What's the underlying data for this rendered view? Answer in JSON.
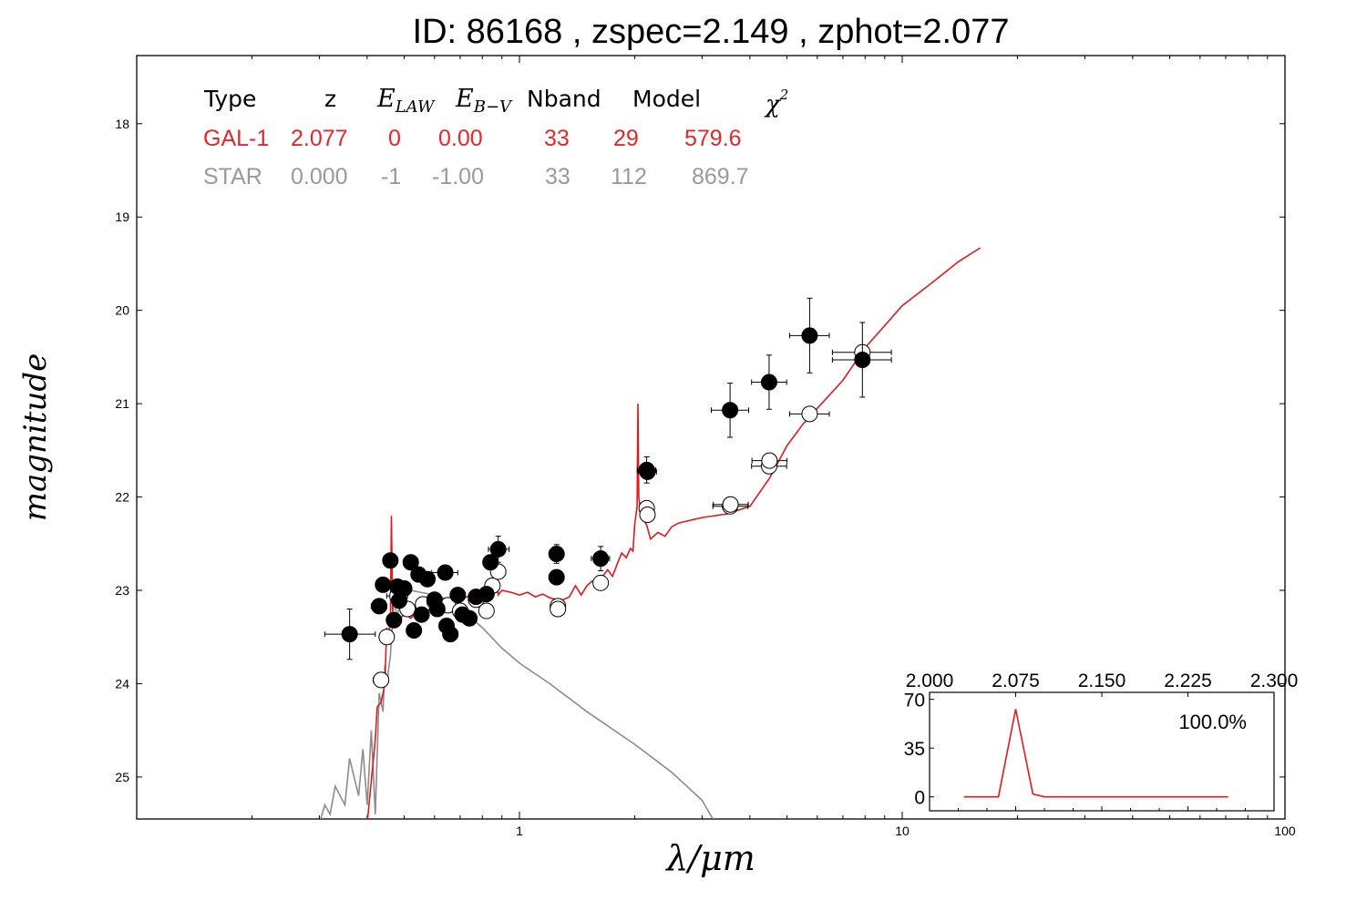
{
  "title": "ID:  86168 , zspec=2.149 , zphot=2.077",
  "colors": {
    "gal": "#e8262a",
    "star": "#999999",
    "model_star": "#8c8c8c",
    "model_gal": "#e0191f",
    "axis": "#000000"
  },
  "table": {
    "headers": [
      "Type",
      "z",
      "E",
      "LAW",
      "E",
      "B−V",
      "Nband",
      "Model",
      "χ",
      "2"
    ],
    "rows": [
      {
        "name": "gal",
        "cells": [
          "GAL-1",
          "2.077",
          "0",
          "0.00",
          "33",
          "29",
          "579.6"
        ]
      },
      {
        "name": "star",
        "cells": [
          "STAR",
          "0.000",
          "-1",
          "-1.00",
          "33",
          "112",
          "869.7"
        ]
      }
    ]
  },
  "chart_data": [
    {
      "type": "scatter",
      "title": "ID:  86168 , zspec=2.149 , zphot=2.077",
      "xlabel": "λ/μm",
      "ylabel": "magnitude",
      "xscale": "log",
      "xlim": [
        0.1,
        100
      ],
      "ylim": [
        25.45,
        17.27
      ],
      "x_ticks": [
        1,
        10,
        100
      ],
      "x_tick_labels": [
        "1",
        "10",
        "100"
      ],
      "y_ticks": [
        18,
        19,
        20,
        21,
        22,
        23,
        24,
        25
      ],
      "y_tick_labels": [
        "18",
        "19",
        "20",
        "21",
        "22",
        "23",
        "24",
        "25"
      ],
      "grid": false,
      "series": [
        {
          "marker": "filled circle",
          "points": [
            {
              "x": 0.36,
              "y": 23.47,
              "xerr_lo": 0.05,
              "xerr_hi": 0.06,
              "yerr": 0.27
            },
            {
              "x": 0.43,
              "y": 23.17,
              "xerr_lo": 0.02,
              "xerr_hi": 0.02,
              "yerr": 0.06
            },
            {
              "x": 0.44,
              "y": 22.94,
              "xerr_lo": 0.015,
              "xerr_hi": 0.02,
              "yerr": 0.05
            },
            {
              "x": 0.46,
              "y": 22.68,
              "xerr_lo": 0,
              "xerr_hi": 0,
              "yerr": 0
            },
            {
              "x": 0.47,
              "y": 23.32,
              "xerr_lo": 0,
              "xerr_hi": 0,
              "yerr": 0
            },
            {
              "x": 0.48,
              "y": 22.96,
              "xerr_lo": 0.02,
              "xerr_hi": 0.02,
              "yerr": 0.05
            },
            {
              "x": 0.485,
              "y": 23.11,
              "xerr_lo": 0,
              "xerr_hi": 0,
              "yerr": 0
            },
            {
              "x": 0.5,
              "y": 22.98,
              "xerr_lo": 0,
              "xerr_hi": 0,
              "yerr": 0
            },
            {
              "x": 0.52,
              "y": 22.7,
              "xerr_lo": 0,
              "xerr_hi": 0,
              "yerr": 0
            },
            {
              "x": 0.53,
              "y": 23.43,
              "xerr_lo": 0,
              "xerr_hi": 0,
              "yerr": 0
            },
            {
              "x": 0.545,
              "y": 22.83,
              "xerr_lo": 0.015,
              "xerr_hi": 0.015,
              "yerr": 0
            },
            {
              "x": 0.555,
              "y": 23.26,
              "xerr_lo": 0,
              "xerr_hi": 0,
              "yerr": 0
            },
            {
              "x": 0.575,
              "y": 22.88,
              "xerr_lo": 0,
              "xerr_hi": 0,
              "yerr": 0
            },
            {
              "x": 0.6,
              "y": 23.1,
              "xerr_lo": 0.02,
              "xerr_hi": 0.02,
              "yerr": 0
            },
            {
              "x": 0.61,
              "y": 23.2,
              "xerr_lo": 0,
              "xerr_hi": 0,
              "yerr": 0
            },
            {
              "x": 0.64,
              "y": 22.81,
              "xerr_lo": 0.05,
              "xerr_hi": 0.05,
              "yerr": 0
            },
            {
              "x": 0.645,
              "y": 23.38,
              "xerr_lo": 0,
              "xerr_hi": 0,
              "yerr": 0
            },
            {
              "x": 0.66,
              "y": 23.47,
              "xerr_lo": 0,
              "xerr_hi": 0,
              "yerr": 0
            },
            {
              "x": 0.69,
              "y": 23.05,
              "xerr_lo": 0,
              "xerr_hi": 0,
              "yerr": 0
            },
            {
              "x": 0.71,
              "y": 23.26,
              "xerr_lo": 0,
              "xerr_hi": 0,
              "yerr": 0
            },
            {
              "x": 0.74,
              "y": 23.3,
              "xerr_lo": 0,
              "xerr_hi": 0,
              "yerr": 0
            },
            {
              "x": 0.77,
              "y": 23.07,
              "xerr_lo": 0,
              "xerr_hi": 0,
              "yerr": 0
            },
            {
              "x": 0.82,
              "y": 23.04,
              "xerr_lo": 0,
              "xerr_hi": 0,
              "yerr": 0
            },
            {
              "x": 0.84,
              "y": 22.7,
              "xerr_lo": 0.02,
              "xerr_hi": 0.02,
              "yerr": 0.05
            },
            {
              "x": 0.88,
              "y": 22.56,
              "xerr_lo": 0.05,
              "xerr_hi": 0.06,
              "yerr": 0.14
            },
            {
              "x": 1.25,
              "y": 22.61,
              "xerr_lo": 0.02,
              "xerr_hi": 0.02,
              "yerr": 0.1
            },
            {
              "x": 1.25,
              "y": 22.86,
              "xerr_lo": 0.02,
              "xerr_hi": 0.02,
              "yerr": 0.07
            },
            {
              "x": 1.63,
              "y": 22.66,
              "xerr_lo": 0.09,
              "xerr_hi": 0.09,
              "yerr": 0.13
            },
            {
              "x": 2.15,
              "y": 21.71,
              "xerr_lo": 0.12,
              "xerr_hi": 0.12,
              "yerr": 0.14
            },
            {
              "x": 2.16,
              "y": 21.73,
              "xerr_lo": 0.12,
              "xerr_hi": 0.12,
              "yerr": 0.06
            },
            {
              "x": 3.55,
              "y": 21.07,
              "xerr_lo": 0.38,
              "xerr_hi": 0.42,
              "yerr": 0.29
            },
            {
              "x": 4.49,
              "y": 20.77,
              "xerr_lo": 0.45,
              "xerr_hi": 0.5,
              "yerr": 0.29
            },
            {
              "x": 5.73,
              "y": 20.27,
              "xerr_lo": 0.65,
              "xerr_hi": 0.72,
              "yerr": 0.4
            },
            {
              "x": 7.87,
              "y": 20.53,
              "xerr_lo": 1.3,
              "xerr_hi": 1.5,
              "yerr": 0.4
            }
          ]
        },
        {
          "marker": "open circle",
          "points": [
            {
              "x": 0.435,
              "y": 23.96,
              "xerr_lo": 0.02,
              "xerr_hi": 0.02,
              "yerr": 0
            },
            {
              "x": 0.45,
              "y": 23.5,
              "xerr_lo": 0,
              "xerr_hi": 0,
              "yerr": 0
            },
            {
              "x": 0.48,
              "y": 23.06,
              "xerr_lo": 0.03,
              "xerr_hi": 0.03,
              "yerr": 0
            },
            {
              "x": 0.51,
              "y": 23.2,
              "xerr_lo": 0,
              "xerr_hi": 0,
              "yerr": 0
            },
            {
              "x": 0.56,
              "y": 23.15,
              "xerr_lo": 0,
              "xerr_hi": 0,
              "yerr": 0
            },
            {
              "x": 0.6,
              "y": 23.12,
              "xerr_lo": 0,
              "xerr_hi": 0,
              "yerr": 0
            },
            {
              "x": 0.65,
              "y": 23.16,
              "xerr_lo": 0,
              "xerr_hi": 0,
              "yerr": 0
            },
            {
              "x": 0.7,
              "y": 23.22,
              "xerr_lo": 0,
              "xerr_hi": 0,
              "yerr": 0
            },
            {
              "x": 0.77,
              "y": 23.1,
              "xerr_lo": 0,
              "xerr_hi": 0,
              "yerr": 0
            },
            {
              "x": 0.82,
              "y": 23.22,
              "xerr_lo": 0,
              "xerr_hi": 0,
              "yerr": 0
            },
            {
              "x": 0.85,
              "y": 22.95,
              "xerr_lo": 0,
              "xerr_hi": 0,
              "yerr": 0
            },
            {
              "x": 0.88,
              "y": 22.8,
              "xerr_lo": 0.03,
              "xerr_hi": 0.03,
              "yerr": 0
            },
            {
              "x": 1.26,
              "y": 23.17,
              "xerr_lo": 0.02,
              "xerr_hi": 0.02,
              "yerr": 0
            },
            {
              "x": 1.26,
              "y": 23.2,
              "xerr_lo": 0.02,
              "xerr_hi": 0.02,
              "yerr": 0
            },
            {
              "x": 1.63,
              "y": 22.92,
              "xerr_lo": 0.05,
              "xerr_hi": 0.05,
              "yerr": 0
            },
            {
              "x": 2.15,
              "y": 22.12,
              "xerr_lo": 0.08,
              "xerr_hi": 0.08,
              "yerr": 0
            },
            {
              "x": 2.16,
              "y": 22.19,
              "xerr_lo": 0.08,
              "xerr_hi": 0.08,
              "yerr": 0
            },
            {
              "x": 3.55,
              "y": 22.1,
              "xerr_lo": 0.35,
              "xerr_hi": 0.4,
              "yerr": 0
            },
            {
              "x": 3.56,
              "y": 22.08,
              "xerr_lo": 0.35,
              "xerr_hi": 0.4,
              "yerr": 0
            },
            {
              "x": 4.49,
              "y": 21.67,
              "xerr_lo": 0.45,
              "xerr_hi": 0.5,
              "yerr": 0
            },
            {
              "x": 4.5,
              "y": 21.61,
              "xerr_lo": 0.45,
              "xerr_hi": 0.5,
              "yerr": 0
            },
            {
              "x": 5.73,
              "y": 21.11,
              "xerr_lo": 0.65,
              "xerr_hi": 0.72,
              "yerr": 0
            },
            {
              "x": 7.87,
              "y": 20.45,
              "xerr_lo": 1.3,
              "xerr_hi": 1.5,
              "yerr": 0
            }
          ]
        },
        {
          "type": "line",
          "color": "#e0191f",
          "points": [
            [
              0.4,
              25.5
            ],
            [
              0.42,
              24.6
            ],
            [
              0.425,
              24.25
            ],
            [
              0.435,
              24.2
            ],
            [
              0.44,
              24.1
            ],
            [
              0.445,
              24.0
            ],
            [
              0.45,
              23.4
            ],
            [
              0.455,
              23.5
            ],
            [
              0.46,
              23.3
            ],
            [
              0.463,
              22.2
            ],
            [
              0.466,
              23.2
            ],
            [
              0.47,
              23.3
            ],
            [
              0.48,
              23.35
            ],
            [
              0.49,
              23.3
            ],
            [
              0.5,
              23.25
            ],
            [
              0.52,
              23.3
            ],
            [
              0.55,
              23.2
            ],
            [
              0.6,
              23.15
            ],
            [
              0.65,
              23.12
            ],
            [
              0.7,
              23.1
            ],
            [
              0.75,
              23.05
            ],
            [
              0.8,
              23.08
            ],
            [
              0.85,
              23.05
            ],
            [
              0.87,
              22.9
            ],
            [
              0.88,
              23.05
            ],
            [
              0.9,
              23.0
            ],
            [
              0.95,
              23.02
            ],
            [
              1.0,
              23.05
            ],
            [
              1.05,
              23.02
            ],
            [
              1.1,
              23.07
            ],
            [
              1.15,
              23.04
            ],
            [
              1.2,
              23.08
            ],
            [
              1.25,
              23.1
            ],
            [
              1.3,
              23.1
            ],
            [
              1.35,
              23.07
            ],
            [
              1.4,
              22.95
            ],
            [
              1.45,
              23.05
            ],
            [
              1.5,
              22.95
            ],
            [
              1.55,
              22.9
            ],
            [
              1.6,
              22.92
            ],
            [
              1.65,
              22.85
            ],
            [
              1.7,
              22.78
            ],
            [
              1.75,
              22.85
            ],
            [
              1.8,
              22.72
            ],
            [
              1.85,
              22.6
            ],
            [
              1.9,
              22.65
            ],
            [
              1.95,
              22.55
            ],
            [
              1.98,
              22.58
            ],
            [
              2.0,
              22.3
            ],
            [
              2.03,
              22.1
            ],
            [
              2.04,
              21.0
            ],
            [
              2.05,
              22.0
            ],
            [
              2.08,
              22.2
            ],
            [
              2.15,
              22.3
            ],
            [
              2.2,
              22.45
            ],
            [
              2.3,
              22.38
            ],
            [
              2.4,
              22.42
            ],
            [
              2.5,
              22.32
            ],
            [
              2.6,
              22.28
            ],
            [
              3.0,
              22.22
            ],
            [
              3.5,
              22.18
            ],
            [
              4.0,
              22.1
            ],
            [
              4.5,
              21.8
            ],
            [
              5.0,
              21.45
            ],
            [
              5.5,
              21.22
            ],
            [
              6.0,
              21.05
            ],
            [
              7.0,
              20.75
            ],
            [
              8.0,
              20.4
            ],
            [
              10.0,
              19.95
            ],
            [
              12.0,
              19.7
            ],
            [
              14.0,
              19.48
            ],
            [
              16.0,
              19.33
            ]
          ]
        },
        {
          "type": "line",
          "color": "#8c8c8c",
          "points": [
            [
              0.3,
              25.5
            ],
            [
              0.31,
              25.3
            ],
            [
              0.32,
              25.4
            ],
            [
              0.33,
              25.1
            ],
            [
              0.35,
              25.3
            ],
            [
              0.36,
              24.8
            ],
            [
              0.38,
              25.2
            ],
            [
              0.39,
              24.7
            ],
            [
              0.4,
              25.3
            ],
            [
              0.41,
              24.5
            ],
            [
              0.42,
              25.4
            ],
            [
              0.43,
              24.1
            ],
            [
              0.44,
              24.3
            ],
            [
              0.445,
              23.8
            ],
            [
              0.45,
              24.0
            ],
            [
              0.46,
              23.7
            ],
            [
              0.47,
              23.1
            ],
            [
              0.48,
              23.3
            ],
            [
              0.49,
              23.0
            ],
            [
              0.5,
              23.05
            ],
            [
              0.52,
              23.0
            ],
            [
              0.55,
              23.02
            ],
            [
              0.6,
              23.05
            ],
            [
              0.65,
              23.1
            ],
            [
              0.7,
              23.2
            ],
            [
              0.75,
              23.3
            ],
            [
              0.8,
              23.4
            ],
            [
              0.9,
              23.62
            ],
            [
              1.0,
              23.78
            ],
            [
              1.2,
              24.0
            ],
            [
              1.5,
              24.3
            ],
            [
              2.0,
              24.65
            ],
            [
              2.5,
              24.95
            ],
            [
              3.0,
              25.25
            ],
            [
              3.2,
              25.45
            ]
          ]
        }
      ]
    },
    {
      "type": "line",
      "x_tick_labels": [
        "2.000",
        "2.075",
        "2.150",
        "2.225",
        "2.300"
      ],
      "x_ticks": [
        2.0,
        2.075,
        2.15,
        2.225,
        2.3
      ],
      "xlim": [
        2.0,
        2.3
      ],
      "y_tick_labels": [
        "0",
        "35",
        "70"
      ],
      "y_ticks": [
        0,
        35,
        70
      ],
      "ylim": [
        -10,
        75
      ],
      "annotation": "100.0%",
      "color": "#e0191f",
      "points": [
        [
          2.03,
          0
        ],
        [
          2.06,
          0
        ],
        [
          2.075,
          63
        ],
        [
          2.09,
          2
        ],
        [
          2.1,
          0
        ],
        [
          2.26,
          0
        ]
      ]
    }
  ]
}
